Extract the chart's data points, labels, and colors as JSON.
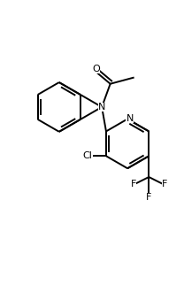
{
  "bg_color": "#ffffff",
  "line_color": "#000000",
  "line_width": 1.4,
  "font_size": 8,
  "fig_width": 2.08,
  "fig_height": 3.39,
  "dpi": 100,
  "xlim": [
    0,
    10
  ],
  "ylim": [
    0,
    16.3
  ]
}
